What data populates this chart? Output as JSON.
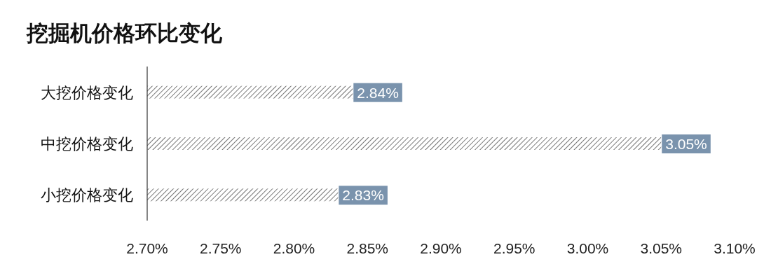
{
  "chart_data": {
    "type": "bar",
    "orientation": "horizontal",
    "title": "挖掘机价格环比变化",
    "categories": [
      "大挖价格变化",
      "中挖价格变化",
      "小挖价格变化"
    ],
    "values": [
      2.84,
      3.05,
      2.83
    ],
    "value_labels": [
      "2.84%",
      "3.05%",
      "2.83%"
    ],
    "color": "#555555",
    "xlim": [
      2.7,
      3.1
    ],
    "xticks": [
      {
        "value": 2.7,
        "label": "2.70%"
      },
      {
        "value": 2.75,
        "label": "2.75%"
      },
      {
        "value": 2.8,
        "label": "2.80%"
      },
      {
        "value": 2.85,
        "label": "2.85%"
      },
      {
        "value": 2.9,
        "label": "2.90%"
      },
      {
        "value": 2.95,
        "label": "2.95%"
      },
      {
        "value": 3.0,
        "label": "3.00%"
      },
      {
        "value": 3.05,
        "label": "3.05%"
      },
      {
        "value": 3.1,
        "label": "3.10%"
      }
    ],
    "grid": false
  }
}
